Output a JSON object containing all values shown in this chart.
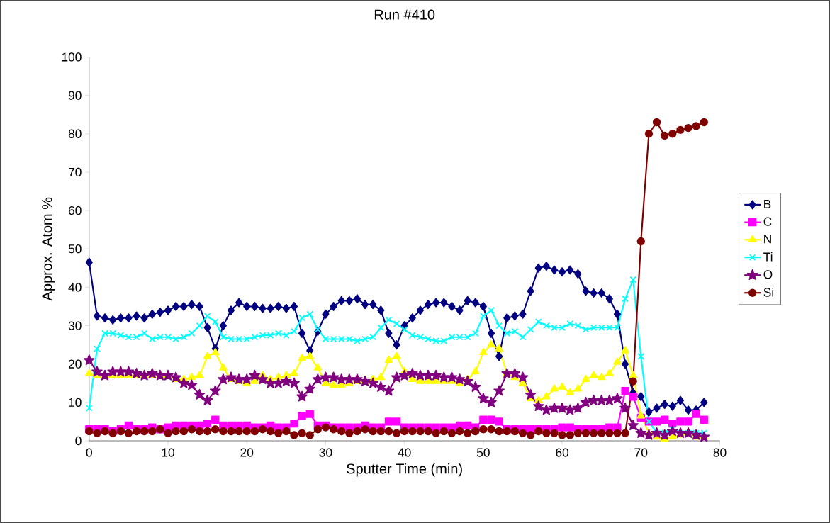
{
  "chart_data": {
    "type": "line",
    "title": "Run #410",
    "xlabel": "Sputter Time (min)",
    "ylabel": "Approx. Atom %",
    "x": [
      0,
      1,
      2,
      3,
      4,
      5,
      6,
      7,
      8,
      9,
      10,
      11,
      12,
      13,
      14,
      15,
      16,
      17,
      18,
      19,
      20,
      21,
      22,
      23,
      24,
      25,
      26,
      27,
      28,
      29,
      30,
      31,
      32,
      33,
      34,
      35,
      36,
      37,
      38,
      39,
      40,
      41,
      42,
      43,
      44,
      45,
      46,
      47,
      48,
      49,
      50,
      51,
      52,
      53,
      54,
      55,
      56,
      57,
      58,
      59,
      60,
      61,
      62,
      63,
      64,
      65,
      66,
      67,
      68,
      69,
      70,
      71,
      72,
      73,
      74,
      75,
      76,
      77,
      78
    ],
    "series": [
      {
        "name": "B",
        "color": "#000080",
        "marker": "diamond",
        "values": [
          46.5,
          32.5,
          32,
          31.5,
          32,
          32,
          32.5,
          32,
          33,
          33.5,
          34,
          35,
          35,
          35.5,
          35,
          29.5,
          24,
          30,
          34,
          36,
          35,
          35,
          34.5,
          34.5,
          35,
          34.5,
          35,
          28,
          23.5,
          28.5,
          33,
          35,
          36.5,
          36.5,
          37,
          35.5,
          35.5,
          34,
          28,
          25,
          30,
          32,
          34,
          35.5,
          36,
          36,
          35,
          34,
          36.5,
          36,
          35,
          28,
          22,
          32,
          32.5,
          33,
          39,
          45,
          45.5,
          44.5,
          44,
          44.5,
          43.5,
          39,
          38.5,
          38.5,
          37,
          33,
          20,
          12.5,
          11.5,
          7.5,
          8.5,
          9.5,
          9,
          10.5,
          8,
          8,
          10
        ]
      },
      {
        "name": "C",
        "color": "#ff00ff",
        "marker": "square",
        "values": [
          3,
          3,
          3,
          2.5,
          3,
          4,
          3,
          3,
          3.5,
          3,
          3.5,
          4,
          4,
          4,
          4,
          4.5,
          5.5,
          4,
          4,
          4,
          4,
          3.5,
          3.5,
          4,
          3.5,
          3.5,
          4.5,
          6.5,
          7,
          4,
          4,
          3.5,
          3.5,
          3.5,
          3.5,
          4,
          3.5,
          3.5,
          5,
          5,
          3.5,
          3.5,
          3.5,
          3.5,
          3.5,
          3.5,
          3.5,
          4,
          4,
          3.5,
          5.5,
          5.5,
          5,
          3,
          3,
          3,
          3,
          3,
          3,
          3,
          3.5,
          3.5,
          3,
          3,
          3,
          3,
          3.5,
          3.5,
          13,
          11.5,
          6,
          5,
          5,
          5.5,
          4.5,
          5,
          5,
          7,
          5.5
        ]
      },
      {
        "name": "N",
        "color": "#ffff00",
        "marker": "triangle",
        "values": [
          17.5,
          17,
          17,
          17,
          17,
          17,
          17,
          17,
          17,
          17,
          17,
          16,
          16,
          16.5,
          17,
          22,
          23,
          19,
          16,
          15.5,
          15,
          15.5,
          17,
          16,
          16.5,
          17,
          17.5,
          21.5,
          22,
          19,
          15,
          14.5,
          14.5,
          15,
          15.5,
          15.5,
          16,
          16.5,
          21,
          22,
          18,
          16,
          15.5,
          15.5,
          15.5,
          15.5,
          15.5,
          15,
          16,
          18,
          23,
          25,
          24,
          17.5,
          16.5,
          15,
          11,
          10.5,
          11.5,
          13.5,
          14,
          12.5,
          13.5,
          16,
          17,
          16.5,
          17.5,
          20.5,
          23.5,
          17,
          6.5,
          2,
          1,
          0.5,
          1,
          1.5,
          2,
          1,
          1
        ]
      },
      {
        "name": "Ti",
        "color": "#00ffff",
        "marker": "cross",
        "values": [
          8.5,
          24,
          28,
          28,
          27.5,
          27,
          27,
          28,
          26.5,
          27,
          27,
          26.5,
          27,
          28,
          30,
          32.5,
          31,
          27,
          26.5,
          26.5,
          26.5,
          27,
          27.5,
          27.5,
          28,
          27.5,
          28.5,
          32,
          33,
          29,
          26.5,
          26.5,
          26.5,
          26.5,
          26,
          26.5,
          27,
          29.5,
          31.5,
          30.5,
          29,
          27.5,
          27,
          26.5,
          26,
          26,
          27,
          27,
          27,
          28,
          32.5,
          34,
          30,
          28,
          28.5,
          27,
          29,
          31,
          30,
          29.5,
          29.5,
          30.5,
          30,
          29,
          29.5,
          29.5,
          29.5,
          29.5,
          37,
          42,
          22,
          5,
          2,
          2,
          3,
          2,
          2,
          2,
          2
        ]
      },
      {
        "name": "O",
        "color": "#800080",
        "marker": "star",
        "values": [
          21,
          18,
          17,
          18,
          18,
          18,
          17.5,
          17,
          17.5,
          17,
          17,
          16.5,
          15,
          14.5,
          12,
          10.5,
          13,
          16,
          16.5,
          16,
          16,
          17,
          16,
          15,
          15,
          15.5,
          15,
          11.5,
          13.5,
          16,
          16.5,
          16.5,
          16,
          16,
          16,
          15.5,
          15,
          14,
          13,
          16.5,
          17,
          17.5,
          17,
          17,
          17,
          16.5,
          16.5,
          16,
          15.5,
          14,
          11,
          10,
          13,
          17.5,
          17.5,
          16.5,
          12,
          9,
          8,
          8.5,
          8.5,
          8,
          8.5,
          10,
          10.5,
          10.5,
          10.5,
          11,
          8.5,
          4,
          2,
          1.5,
          2,
          1.5,
          2.5,
          2,
          2,
          1.5,
          1
        ]
      },
      {
        "name": "Si",
        "color": "#800000",
        "marker": "circle",
        "values": [
          2.5,
          2,
          2.5,
          2,
          2.5,
          2,
          2.5,
          2.5,
          2.5,
          3,
          2,
          2.5,
          2.5,
          3,
          2.5,
          2.5,
          3,
          2.5,
          2.5,
          2.5,
          2.5,
          2.5,
          3,
          2.5,
          2,
          2.5,
          1.5,
          2,
          1.5,
          3,
          3.5,
          3,
          2.5,
          2,
          2.5,
          3,
          2.5,
          2.5,
          2.5,
          2,
          2.5,
          2.5,
          2.5,
          2.5,
          2,
          2.5,
          2,
          2.5,
          2,
          2.5,
          3,
          3,
          2.5,
          2.5,
          2.5,
          2,
          1.5,
          2.5,
          2,
          2,
          1.5,
          1.5,
          2,
          2,
          2,
          2,
          2,
          2,
          2,
          15.5,
          52,
          80,
          83,
          79.5,
          80,
          81,
          81.5,
          82,
          83
        ]
      }
    ],
    "xlim": [
      0,
      80
    ],
    "xticks": [
      0,
      10,
      20,
      30,
      40,
      50,
      60,
      70,
      80
    ],
    "ylim": [
      0,
      100
    ],
    "yticks": [
      0,
      10,
      20,
      30,
      40,
      50,
      60,
      70,
      80,
      90,
      100
    ],
    "grid": false,
    "legend": "right",
    "line_style": "solid"
  }
}
